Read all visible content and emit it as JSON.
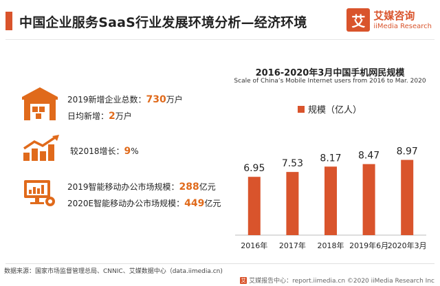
{
  "header": {
    "title": "中国企业服务SaaS行业发展环境分析—经济环境",
    "brand_cn": "艾媒咨询",
    "brand_en": "iiMedia Research",
    "brand_mark": "艾"
  },
  "stats": {
    "new_companies_label": "2019新增企业总数：",
    "new_companies_value": "730",
    "new_companies_unit": "万户",
    "daily_label": "日均新增：",
    "daily_value": "2",
    "daily_unit": "万户",
    "growth_label": "较2018增长：",
    "growth_value": "9",
    "growth_unit": "%",
    "office_2019_label": "2019智能移动办公市场规模：",
    "office_2019_value": "288",
    "office_2019_unit": "亿元",
    "office_2020_label": "2020E智能移动办公市场规模：",
    "office_2020_value": "449",
    "office_2020_unit": "亿元"
  },
  "footer": {
    "source": "数据来源：国家市场监督管理总局、CNNIC、艾媒数据中心（data.iimedia.cn)",
    "right": "艾媒报告中心：report.iimedia.cn  ©2020  iiMedia Research  Inc",
    "logo": "艾"
  },
  "colors": {
    "accent": "#d9542c",
    "highlight": "#e06a1b",
    "bar": "#d9542c"
  },
  "chart_data": {
    "type": "bar",
    "title": "2016-2020年3月中国手机网民规模",
    "subtitle": "Scale of China’s Mobile Internet users from 2016 to Mar. 2020",
    "categories": [
      "2016年",
      "2017年",
      "2018年",
      "2019年6月",
      "2020年3月"
    ],
    "series": [
      {
        "name": "规模（亿人）",
        "values": [
          6.95,
          7.53,
          8.17,
          8.47,
          8.97
        ]
      }
    ],
    "ylim": [
      0,
      10
    ],
    "grid": false,
    "legend": "top-center"
  }
}
